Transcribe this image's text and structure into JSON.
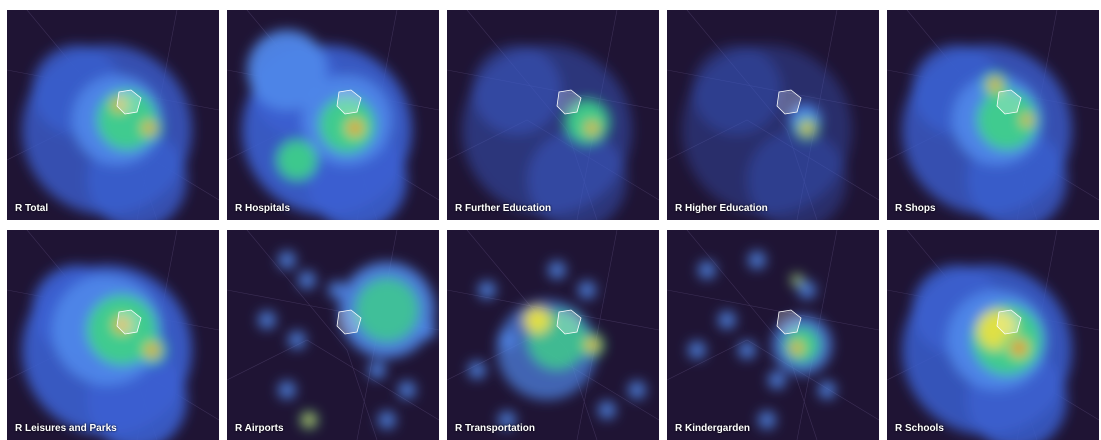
{
  "panels": [
    {
      "label": "R Total"
    },
    {
      "label": "R Hospitals"
    },
    {
      "label": "R Further Education"
    },
    {
      "label": "R Higher Education"
    },
    {
      "label": "R Shops"
    },
    {
      "label": "R Leisures and Parks"
    },
    {
      "label": "R Airports"
    },
    {
      "label": "R Transportation"
    },
    {
      "label": "R Kindergarden"
    },
    {
      "label": "R Schools"
    }
  ]
}
